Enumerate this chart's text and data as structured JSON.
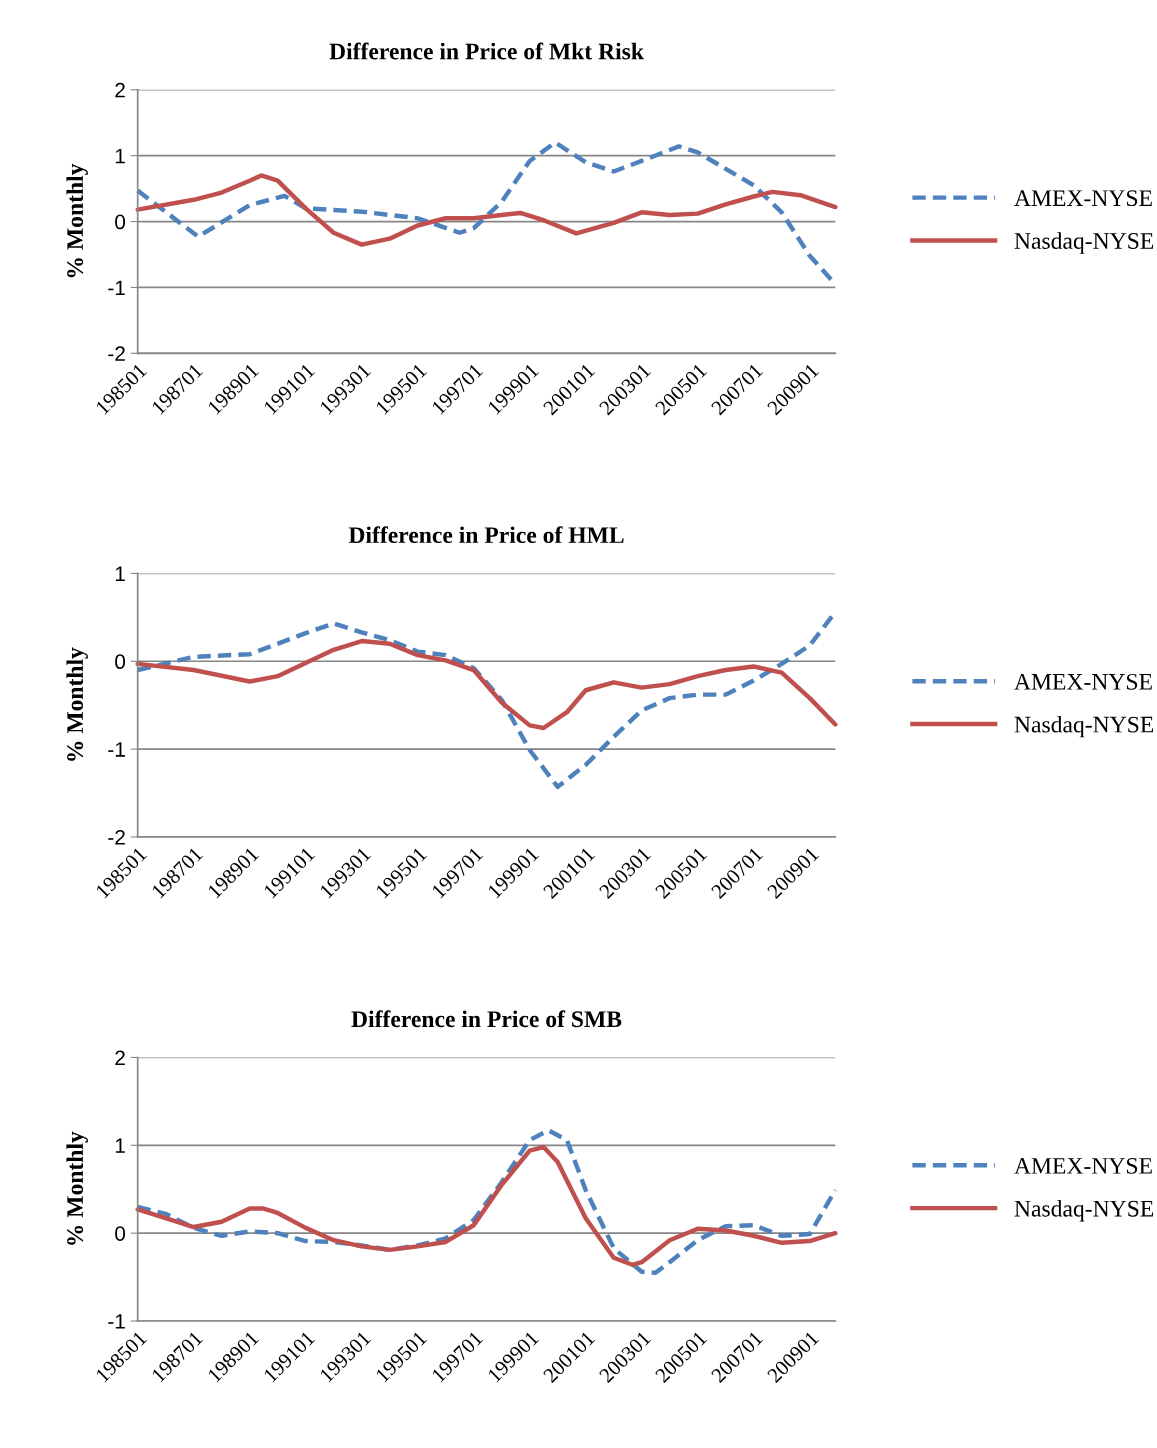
{
  "chart_data": [
    {
      "type": "line",
      "title": "Difference in Price of Mkt Risk",
      "ylabel": "% Monthly",
      "xlim": [
        "1985-01",
        "2009-12"
      ],
      "xticks": [
        {
          "value": "1985-01",
          "label": "198501"
        },
        {
          "value": "1987-01",
          "label": "198701"
        },
        {
          "value": "1989-01",
          "label": "198901"
        },
        {
          "value": "1991-01",
          "label": "199101"
        },
        {
          "value": "1993-01",
          "label": "199301"
        },
        {
          "value": "1995-01",
          "label": "199501"
        },
        {
          "value": "1997-01",
          "label": "199701"
        },
        {
          "value": "1999-01",
          "label": "199901"
        },
        {
          "value": "2001-01",
          "label": "200101"
        },
        {
          "value": "2003-01",
          "label": "200301"
        },
        {
          "value": "2005-01",
          "label": "200501"
        },
        {
          "value": "2007-01",
          "label": "200701"
        },
        {
          "value": "2009-01",
          "label": "200901"
        }
      ],
      "ylim": [
        -2,
        2
      ],
      "yticks": [
        2,
        1,
        0,
        -1,
        -2
      ],
      "grid": "y",
      "legend": "right",
      "series": [
        {
          "name": "AMEX-NYSE",
          "color": "#4f81bd",
          "line_style": "dashed",
          "x": [
            "1985-01",
            "1987-03",
            "1989-01",
            "1990-04",
            "1991-01",
            "1993-01",
            "1995-01",
            "1996-07",
            "1997-01",
            "1998-01",
            "1999-01",
            "1999-12",
            "2001-01",
            "2002-01",
            "2003-01",
            "2004-05",
            "2005-01",
            "2007-01",
            "2008-01",
            "2009-01",
            "2009-12"
          ],
          "values": [
            0.47,
            -0.23,
            0.25,
            0.39,
            0.2,
            0.15,
            0.05,
            -0.17,
            -0.1,
            0.3,
            0.92,
            1.2,
            0.9,
            0.76,
            0.92,
            1.14,
            1.05,
            0.55,
            0.14,
            -0.52,
            -0.95
          ]
        },
        {
          "name": "Nasdaq-NYSE",
          "color": "#c0504d",
          "line_style": "solid",
          "x": [
            "1985-01",
            "1987-01",
            "1988-01",
            "1989-01",
            "1989-06",
            "1990-01",
            "1991-01",
            "1992-01",
            "1993-01",
            "1994-01",
            "1995-01",
            "1996-01",
            "1997-01",
            "1998-01",
            "1998-09",
            "1999-07",
            "2000-09",
            "2002-01",
            "2003-01",
            "2004-01",
            "2005-01",
            "2006-01",
            "2007-01",
            "2007-09",
            "2008-09",
            "2009-12"
          ],
          "values": [
            0.18,
            0.33,
            0.44,
            0.62,
            0.7,
            0.62,
            0.2,
            -0.17,
            -0.35,
            -0.26,
            -0.06,
            0.05,
            0.05,
            0.1,
            0.13,
            0.02,
            -0.18,
            -0.02,
            0.14,
            0.1,
            0.12,
            0.26,
            0.38,
            0.45,
            0.4,
            0.22
          ]
        }
      ]
    },
    {
      "type": "line",
      "title": "Difference in Price of HML",
      "ylabel": "% Monthly",
      "xlim": [
        "1985-01",
        "2009-12"
      ],
      "xticks": [
        {
          "value": "1985-01",
          "label": "198501"
        },
        {
          "value": "1987-01",
          "label": "198701"
        },
        {
          "value": "1989-01",
          "label": "198901"
        },
        {
          "value": "1991-01",
          "label": "199101"
        },
        {
          "value": "1993-01",
          "label": "199301"
        },
        {
          "value": "1995-01",
          "label": "199501"
        },
        {
          "value": "1997-01",
          "label": "199701"
        },
        {
          "value": "1999-01",
          "label": "199901"
        },
        {
          "value": "2001-01",
          "label": "200101"
        },
        {
          "value": "2003-01",
          "label": "200301"
        },
        {
          "value": "2005-01",
          "label": "200501"
        },
        {
          "value": "2007-01",
          "label": "200701"
        },
        {
          "value": "2009-01",
          "label": "200901"
        }
      ],
      "ylim": [
        -2,
        1
      ],
      "yticks": [
        1,
        0,
        -1,
        -2
      ],
      "grid": "y",
      "legend": "right",
      "series": [
        {
          "name": "AMEX-NYSE",
          "color": "#4f81bd",
          "line_style": "dashed",
          "x": [
            "1985-01",
            "1987-01",
            "1989-01",
            "1991-01",
            "1992-01",
            "1993-01",
            "1994-01",
            "1995-01",
            "1996-01",
            "1997-01",
            "1998-01",
            "1999-01",
            "2000-01",
            "2001-01",
            "2002-01",
            "2003-01",
            "2004-01",
            "2005-01",
            "2006-01",
            "2007-01",
            "2008-01",
            "2009-01",
            "2009-12"
          ],
          "values": [
            -0.1,
            0.05,
            0.08,
            0.32,
            0.43,
            0.33,
            0.24,
            0.11,
            0.07,
            -0.08,
            -0.44,
            -1.01,
            -1.43,
            -1.18,
            -0.86,
            -0.56,
            -0.42,
            -0.38,
            -0.38,
            -0.22,
            -0.03,
            0.18,
            0.56
          ]
        },
        {
          "name": "Nasdaq-NYSE",
          "color": "#c0504d",
          "line_style": "solid",
          "x": [
            "1985-01",
            "1987-01",
            "1989-01",
            "1990-01",
            "1991-01",
            "1992-01",
            "1993-01",
            "1994-01",
            "1995-01",
            "1996-01",
            "1997-01",
            "1998-01",
            "1999-01",
            "1999-07",
            "2000-05",
            "2001-01",
            "2002-01",
            "2003-01",
            "2004-01",
            "2005-01",
            "2006-01",
            "2007-01",
            "2008-01",
            "2009-01",
            "2009-12"
          ],
          "values": [
            -0.03,
            -0.1,
            -0.23,
            -0.17,
            -0.02,
            0.13,
            0.23,
            0.2,
            0.07,
            0.01,
            -0.1,
            -0.47,
            -0.73,
            -0.76,
            -0.58,
            -0.33,
            -0.24,
            -0.3,
            -0.26,
            -0.17,
            -0.1,
            -0.06,
            -0.13,
            -0.42,
            -0.72
          ]
        }
      ]
    },
    {
      "type": "line",
      "title": "Difference in Price of SMB",
      "ylabel": "% Monthly",
      "xlim": [
        "1985-01",
        "2009-12"
      ],
      "xticks": [
        {
          "value": "1985-01",
          "label": "198501"
        },
        {
          "value": "1987-01",
          "label": "198701"
        },
        {
          "value": "1989-01",
          "label": "198901"
        },
        {
          "value": "1991-01",
          "label": "199101"
        },
        {
          "value": "1993-01",
          "label": "199301"
        },
        {
          "value": "1995-01",
          "label": "199501"
        },
        {
          "value": "1997-01",
          "label": "199701"
        },
        {
          "value": "1999-01",
          "label": "199901"
        },
        {
          "value": "2001-01",
          "label": "200101"
        },
        {
          "value": "2003-01",
          "label": "200301"
        },
        {
          "value": "2005-01",
          "label": "200501"
        },
        {
          "value": "2007-01",
          "label": "200701"
        },
        {
          "value": "2009-01",
          "label": "200901"
        }
      ],
      "ylim": [
        -1,
        2
      ],
      "yticks": [
        2,
        1,
        0,
        -1
      ],
      "grid": "y",
      "legend": "right",
      "series": [
        {
          "name": "AMEX-NYSE",
          "color": "#4f81bd",
          "line_style": "dashed",
          "x": [
            "1985-01",
            "1986-01",
            "1987-01",
            "1988-01",
            "1989-01",
            "1990-01",
            "1991-01",
            "1992-01",
            "1993-01",
            "1994-01",
            "1995-01",
            "1996-01",
            "1997-01",
            "1998-01",
            "1999-01",
            "1999-09",
            "2000-05",
            "2001-01",
            "2002-01",
            "2003-01",
            "2003-07",
            "2004-01",
            "2005-01",
            "2006-01",
            "2007-01",
            "2008-01",
            "2009-01",
            "2009-12"
          ],
          "values": [
            0.3,
            0.22,
            0.06,
            -0.03,
            0.02,
            0,
            -0.09,
            -0.1,
            -0.14,
            -0.19,
            -0.14,
            -0.06,
            0.15,
            0.58,
            1.06,
            1.17,
            1.06,
            0.49,
            -0.17,
            -0.44,
            -0.45,
            -0.33,
            -0.08,
            0.08,
            0.09,
            -0.03,
            -0.01,
            0.49
          ]
        },
        {
          "name": "Nasdaq-NYSE",
          "color": "#c0504d",
          "line_style": "solid",
          "x": [
            "1985-01",
            "1986-01",
            "1987-01",
            "1988-01",
            "1989-01",
            "1989-07",
            "1990-01",
            "1991-01",
            "1992-01",
            "1993-01",
            "1994-01",
            "1995-01",
            "1996-01",
            "1997-01",
            "1998-01",
            "1999-01",
            "1999-07",
            "2000-01",
            "2001-01",
            "2002-01",
            "2002-09",
            "2003-01",
            "2004-01",
            "2005-01",
            "2006-01",
            "2007-01",
            "2008-01",
            "2009-01",
            "2009-12"
          ],
          "values": [
            0.27,
            0.17,
            0.07,
            0.13,
            0.28,
            0.28,
            0.23,
            0.06,
            -0.08,
            -0.15,
            -0.19,
            -0.15,
            -0.1,
            0.09,
            0.55,
            0.94,
            0.98,
            0.81,
            0.17,
            -0.28,
            -0.36,
            -0.33,
            -0.08,
            0.05,
            0.03,
            -0.03,
            -0.11,
            -0.09,
            0
          ]
        }
      ]
    }
  ]
}
